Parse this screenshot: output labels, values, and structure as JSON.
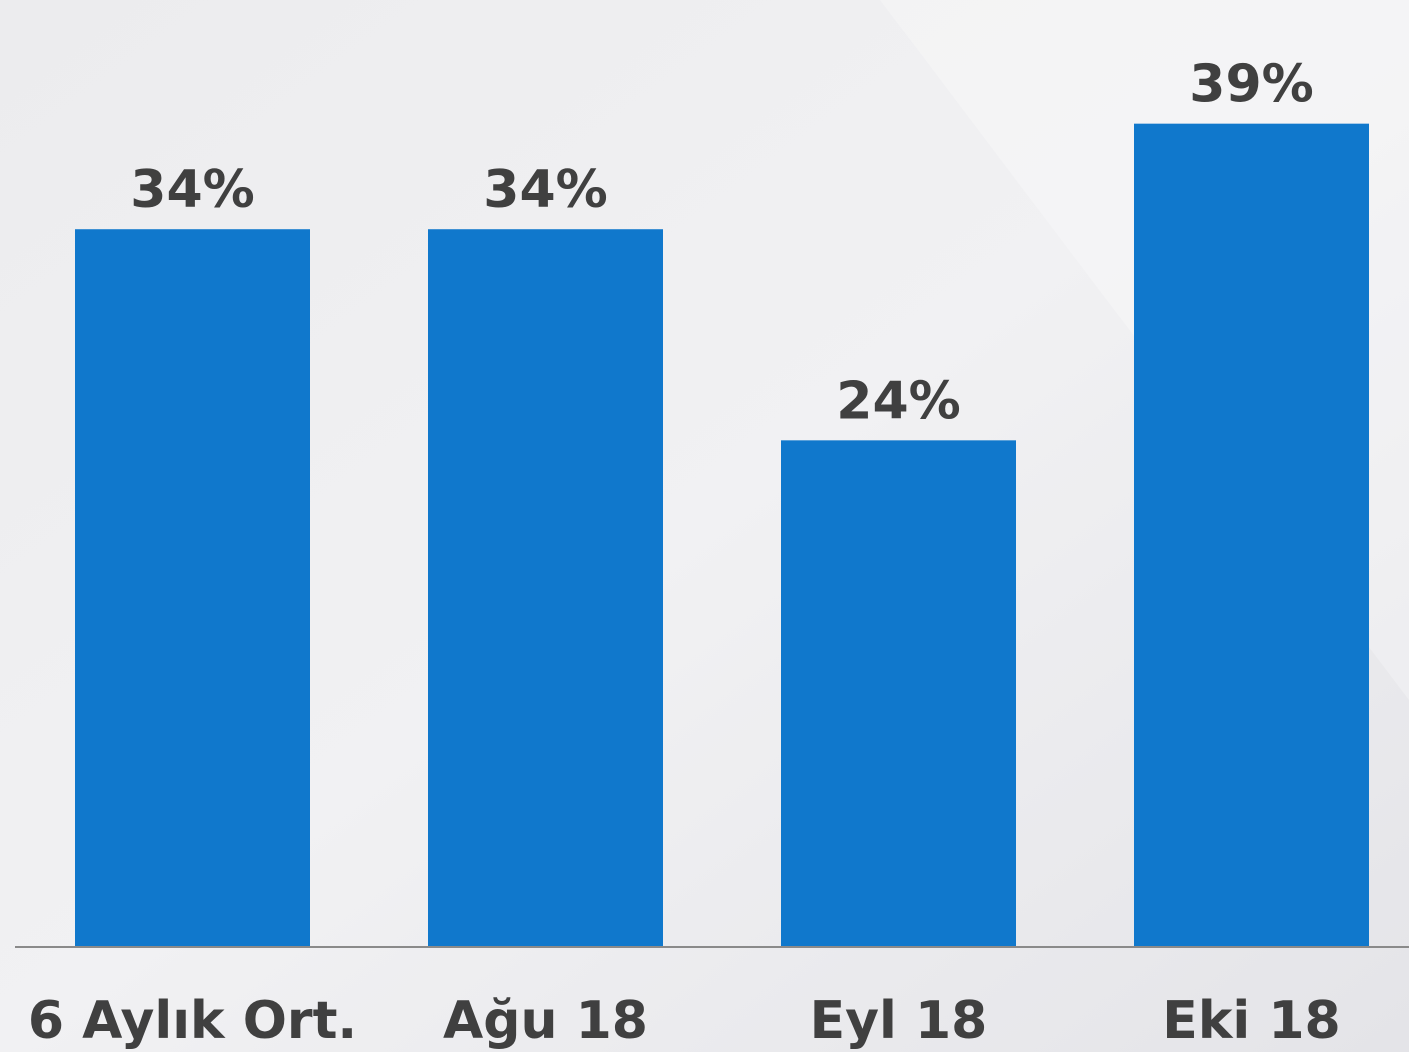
{
  "chart_data": {
    "type": "bar",
    "categories": [
      "6 Aylık Ort.",
      "Ağu 18",
      "Eyl 18",
      "Eki 18"
    ],
    "values": [
      34,
      34,
      24,
      39
    ],
    "value_labels": [
      "34%",
      "34%",
      "24%",
      "39%"
    ],
    "color": "#1078cc",
    "ylim": [
      0,
      45
    ]
  }
}
